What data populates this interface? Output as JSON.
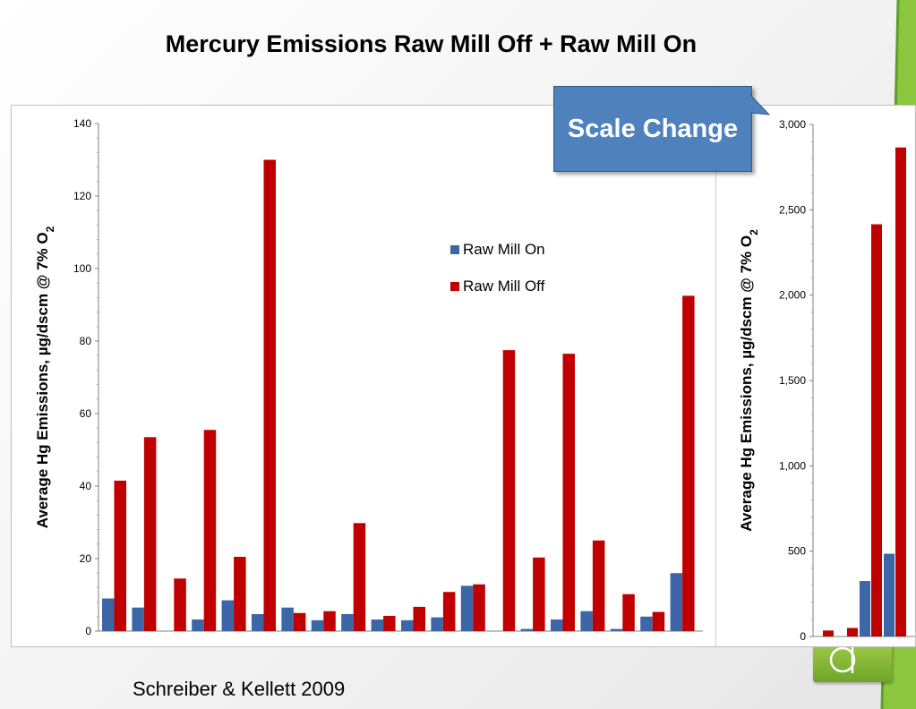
{
  "slide": {
    "title": "Mercury Emissions Raw Mill Off + Raw Mill On",
    "citation": "Schreiber & Kellett 2009",
    "callout": "Scale Change"
  },
  "colors": {
    "raw_mill_on": "#3d66a6",
    "raw_mill_off": "#c00000",
    "callout_fill": "#4f81bd",
    "accent_green": "#8cc63f"
  },
  "chart_data": [
    {
      "type": "bar",
      "ylabel": "Average Hg Emissions, µg/dscm @ 7% O",
      "ylabel_subscript": "2",
      "ylim": [
        0,
        140
      ],
      "yticks": [
        "0",
        "20",
        "40",
        "60",
        "80",
        "100",
        "120",
        "140"
      ],
      "ytick_values": [
        0,
        20,
        40,
        60,
        80,
        100,
        120,
        140
      ],
      "legend_position": "upper-right",
      "series": [
        {
          "name": "Raw Mill On",
          "values": [
            9,
            6.5,
            0,
            3.2,
            8.5,
            4.7,
            6.5,
            3,
            4.7,
            3.2,
            3,
            3.8,
            12.5,
            0,
            0.6,
            3.2,
            5.5,
            0.6,
            4,
            16
          ]
        },
        {
          "name": "Raw Mill Off",
          "values": [
            41.5,
            53.5,
            14.5,
            55.5,
            20.5,
            130,
            5,
            5.5,
            29.8,
            4.2,
            6.7,
            10.8,
            12.9,
            77.5,
            20.3,
            76.5,
            25,
            10.2,
            5.3,
            92.5
          ]
        }
      ]
    },
    {
      "type": "bar",
      "ylabel": "Average Hg Emissions, µg/dscm @ 7% O",
      "ylabel_subscript": "2",
      "ylim": [
        0,
        3000
      ],
      "yticks": [
        "0",
        "500",
        "1,000",
        "1,500",
        "2,000",
        "2,500",
        "3,000"
      ],
      "ytick_values": [
        0,
        500,
        1000,
        1500,
        2000,
        2500,
        3000
      ],
      "series": [
        {
          "name": "Raw Mill On",
          "values": [
            0,
            0,
            325,
            485
          ]
        },
        {
          "name": "Raw Mill Off",
          "values": [
            35,
            50,
            2415,
            2865
          ]
        }
      ]
    }
  ]
}
